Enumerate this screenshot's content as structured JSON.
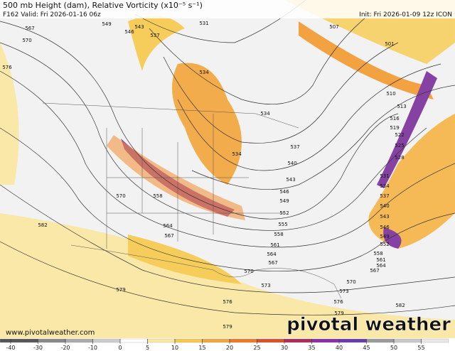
{
  "header": {
    "title": "500 mb Height (dam), Relative Vorticity (x10⁻⁵ s⁻¹)",
    "valid": "F162 Valid: Fri 2026-01-16 06z",
    "init": "Init: Fri 2026-01-09 12z ICON"
  },
  "contour_labels": [
    "567",
    "570",
    "576",
    "549",
    "546",
    "543",
    "537",
    "531",
    "534",
    "534",
    "534",
    "537",
    "540",
    "543",
    "546",
    "549",
    "552",
    "555",
    "558",
    "561",
    "564",
    "567",
    "570",
    "573",
    "576",
    "579",
    "579",
    "582",
    "570",
    "558",
    "564",
    "567",
    "507",
    "501",
    "510",
    "513",
    "516",
    "519",
    "522",
    "525",
    "528",
    "531",
    "534",
    "537",
    "540",
    "543",
    "546",
    "549",
    "552",
    "558",
    "561",
    "564",
    "567",
    "570",
    "573",
    "576",
    "579",
    "582"
  ],
  "colorbar": {
    "ticks": [
      -40,
      -30,
      -20,
      -10,
      0,
      5,
      10,
      15,
      20,
      25,
      30,
      35,
      40,
      45,
      50,
      55
    ]
  },
  "watermark": "pivotal weather",
  "website": "www.pivotalweather.com"
}
